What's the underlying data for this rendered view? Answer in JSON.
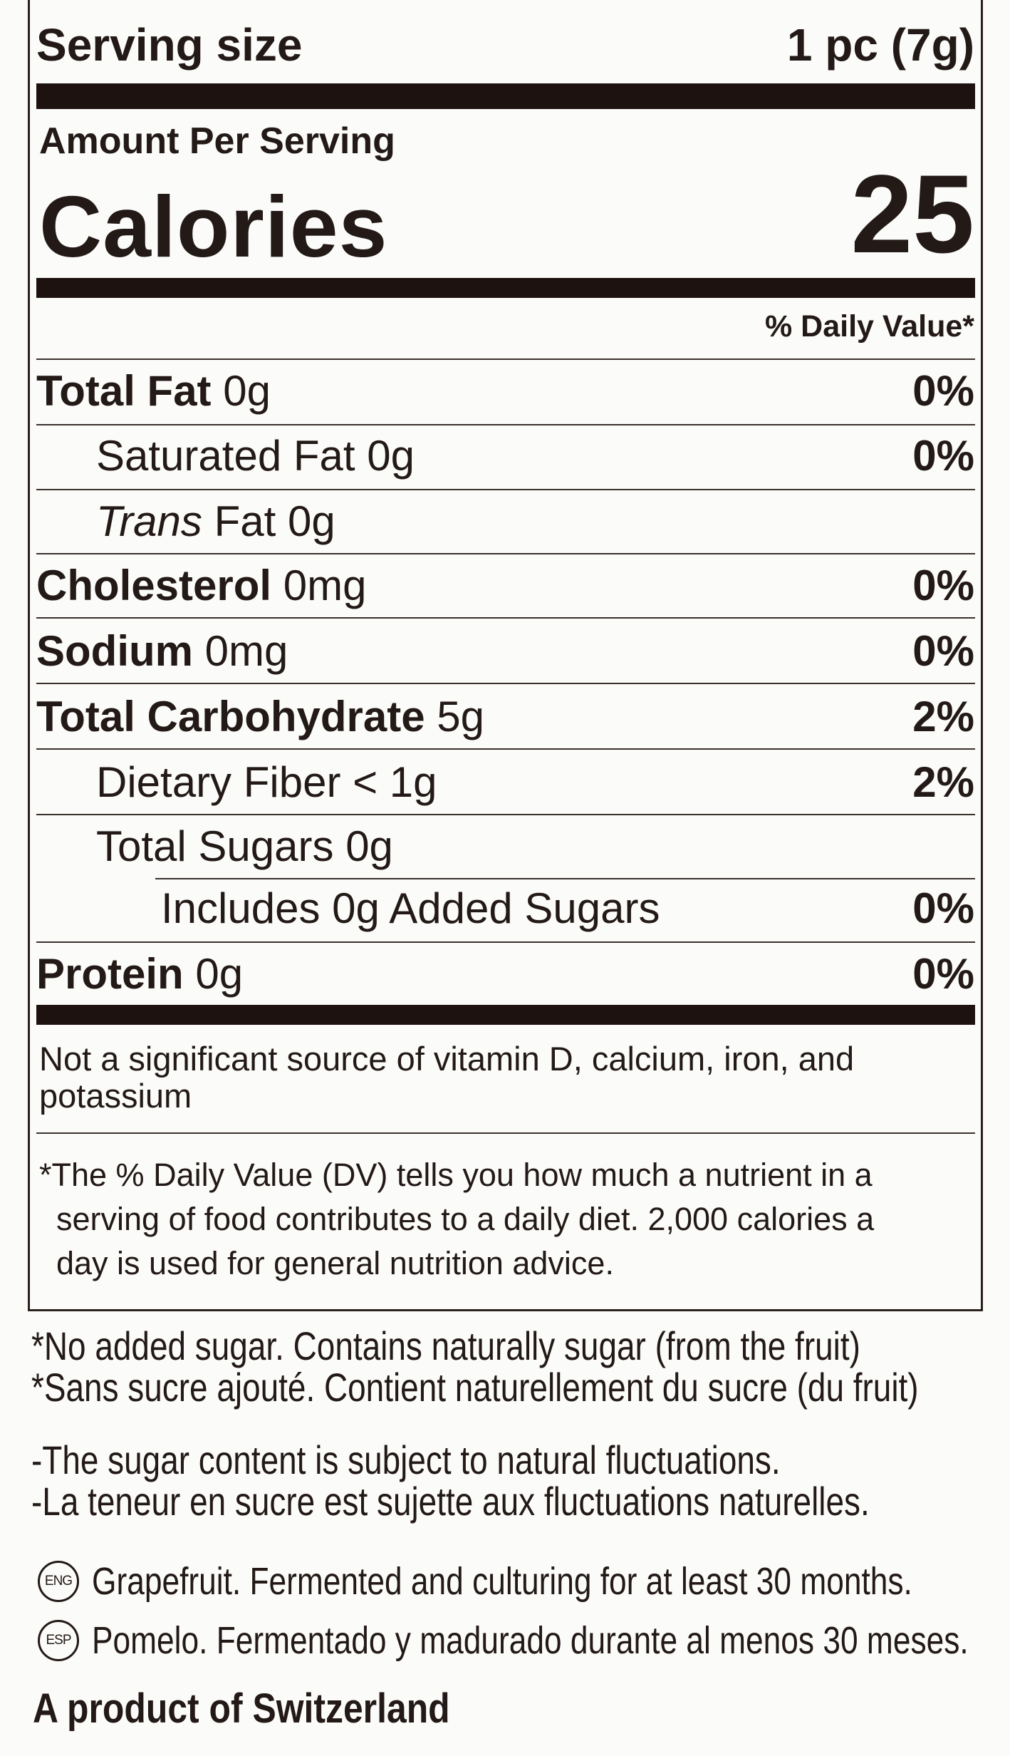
{
  "label": {
    "serving_size_label": "Serving size",
    "serving_size_value": "1 pc (7g)",
    "amount_per_serving": "Amount Per Serving",
    "calories_label": "Calories",
    "calories_value": "25",
    "daily_value_header": "% Daily Value*",
    "rows": [
      {
        "name": "Total Fat",
        "amount": "0g",
        "dv": "0%"
      },
      {
        "name": "Saturated Fat",
        "amount": "0g",
        "dv": "0%"
      },
      {
        "name_italic": "Trans",
        "name": "Fat",
        "amount": "0g",
        "dv": ""
      },
      {
        "name": "Cholesterol",
        "amount": "0mg",
        "dv": "0%"
      },
      {
        "name": "Sodium",
        "amount": "0mg",
        "dv": "0%"
      },
      {
        "name": "Total Carbohydrate",
        "amount": "5g",
        "dv": "2%"
      },
      {
        "name": "Dietary Fiber",
        "amount": "< 1g",
        "dv": "2%"
      },
      {
        "name": "Total Sugars",
        "amount": "0g",
        "dv": ""
      },
      {
        "name": "Includes 0g Added Sugars",
        "amount": "",
        "dv": "0%"
      },
      {
        "name": "Protein",
        "amount": "0g",
        "dv": "0%"
      }
    ],
    "not_significant": [
      "Not a significant source of vitamin D, calcium, iron, and",
      "potassium"
    ],
    "footnote": [
      "*The % Daily Value (DV) tells you how much a nutrient in a",
      "serving of food contributes to a daily diet. 2,000 calories a",
      "day is used for general nutrition advice."
    ]
  },
  "notes": {
    "no_added_sugar": [
      "*No added sugar. Contains naturally sugar (from the fruit)",
      "*Sans sucre ajouté. Contient naturellement du sucre (du fruit)"
    ],
    "fluctuations": [
      "-The sugar content is subject to natural fluctuations.",
      "-La teneur en sucre est sujette aux fluctuations naturelles."
    ],
    "languages": [
      {
        "badge": "ENG",
        "text": "Grapefruit. Fermented and culturing for at least  30 months."
      },
      {
        "badge": "ESP",
        "text": "Pomelo. Fermentado y madurado durante al menos 30 meses."
      }
    ],
    "origin": "A product of Switzerland"
  }
}
